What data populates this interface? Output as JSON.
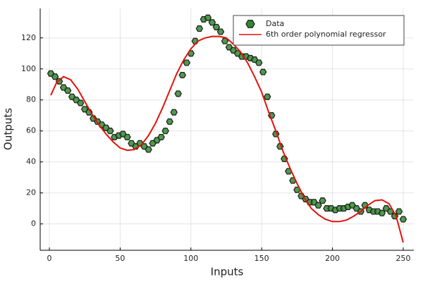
{
  "chart_data": {
    "type": "scatter",
    "xlabel": "Inputs",
    "ylabel": "Outputs",
    "xlim": [
      -6.5,
      257.5
    ],
    "ylim": [
      -17,
      139
    ],
    "xticks": [
      0,
      50,
      100,
      150,
      200,
      250
    ],
    "yticks": [
      0,
      20,
      40,
      60,
      80,
      100,
      120
    ],
    "grid": true,
    "legend": "top right",
    "series": [
      {
        "name": "Data",
        "color": "#2e8b2e",
        "kind": "scatter",
        "x": [
          1,
          4,
          7,
          10,
          13,
          16,
          19,
          22,
          25,
          28,
          31,
          34,
          37,
          40,
          43,
          46,
          49,
          52,
          55,
          58,
          61,
          64,
          67,
          70,
          73,
          76,
          79,
          82,
          85,
          88,
          91,
          94,
          97,
          100,
          103,
          106,
          109,
          112,
          115,
          118,
          121,
          124,
          127,
          130,
          133,
          136,
          139,
          142,
          145,
          148,
          151,
          154,
          157,
          160,
          163,
          166,
          169,
          172,
          175,
          178,
          181,
          184,
          187,
          190,
          193,
          196,
          199,
          202,
          205,
          208,
          211,
          214,
          217,
          220,
          223,
          226,
          229,
          232,
          235,
          238,
          241,
          244,
          247,
          250
        ],
        "values": [
          97,
          95,
          92,
          88,
          86,
          82,
          80,
          78,
          74,
          72,
          68,
          66,
          64,
          62,
          60,
          56,
          57,
          58,
          56,
          52,
          50,
          52,
          50,
          48,
          52,
          54,
          56,
          60,
          66,
          72,
          84,
          96,
          104,
          110,
          118,
          126,
          132,
          133,
          130,
          127,
          124,
          118,
          114,
          112,
          110,
          108,
          108,
          107,
          106,
          104,
          98,
          82,
          70,
          58,
          50,
          42,
          34,
          28,
          22,
          18,
          16,
          14,
          14,
          12,
          15,
          10,
          10,
          9,
          10,
          10,
          11,
          12,
          10,
          8,
          12,
          9,
          8,
          8,
          7,
          10,
          8,
          5,
          8,
          3
        ]
      },
      {
        "name": "6th order polynomial regressor",
        "color": "#e3120b",
        "kind": "line",
        "x": [
          1,
          5,
          10,
          15,
          20,
          25,
          30,
          35,
          40,
          45,
          50,
          55,
          60,
          65,
          70,
          75,
          80,
          85,
          90,
          95,
          100,
          105,
          110,
          115,
          120,
          125,
          130,
          135,
          140,
          145,
          150,
          155,
          160,
          165,
          170,
          175,
          180,
          185,
          190,
          195,
          200,
          205,
          210,
          215,
          220,
          225,
          230,
          235,
          240,
          245,
          250
        ],
        "values": [
          83,
          91,
          95,
          93,
          87,
          79,
          71,
          64,
          58,
          53,
          49,
          47.5,
          48,
          51,
          57,
          65,
          75,
          86,
          97,
          106,
          113,
          118,
          120,
          121,
          121,
          120,
          116,
          111,
          104,
          95,
          85,
          72,
          60,
          47,
          36,
          26,
          17,
          10,
          6,
          3,
          1.5,
          1.5,
          2.5,
          5,
          8,
          12,
          15,
          15.5,
          13,
          5,
          -12
        ]
      }
    ]
  }
}
